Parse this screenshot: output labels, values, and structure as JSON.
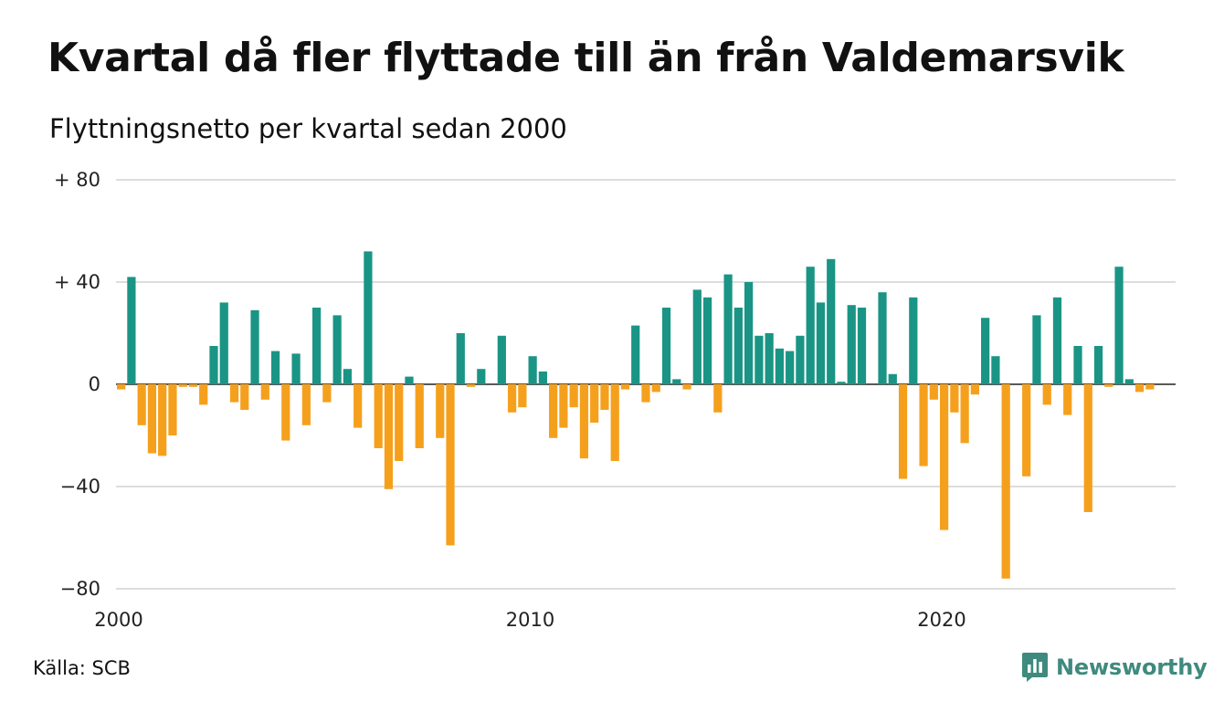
{
  "title": "Kvartal då fler flyttade till än från Valdemarsvik",
  "subtitle": "Flyttningsnetto per kvartal sedan 2000",
  "source": "Källa: SCB",
  "brand": {
    "name": "Newsworthy",
    "icon": "newsworthy-logo-icon",
    "color": "#3f8a7e"
  },
  "colors": {
    "positive": "#1a9585",
    "negative": "#f5a01d",
    "grid": "#dddddd",
    "zero_line": "#222222"
  },
  "chart_data": {
    "type": "bar",
    "title": "Kvartal då fler flyttade till än från Valdemarsvik",
    "subtitle": "Flyttningsnetto per kvartal sedan 2000",
    "xlabel": "",
    "ylabel": "",
    "ylim": [
      -80,
      80
    ],
    "yticks": [
      80,
      40,
      0,
      -40,
      -80
    ],
    "ytick_labels": [
      "+ 80",
      "+ 40",
      "0",
      "−40",
      "−80"
    ],
    "x_range": [
      2000,
      2025.75
    ],
    "xticks": [
      2000,
      2010,
      2020
    ],
    "xtick_labels": [
      "2000",
      "2010",
      "2020"
    ],
    "grid": true,
    "legend": "none",
    "start_quarter": "2000 Q1",
    "values": [
      -2,
      42,
      -16,
      -27,
      -28,
      -20,
      -1,
      -1,
      -8,
      15,
      32,
      -7,
      -10,
      29,
      -6,
      13,
      -22,
      12,
      -16,
      30,
      -7,
      27,
      6,
      -17,
      52,
      -25,
      -41,
      -30,
      3,
      -25,
      0,
      -21,
      -63,
      20,
      -1,
      6,
      0,
      19,
      -11,
      -9,
      11,
      5,
      -21,
      -17,
      -9,
      -29,
      -15,
      -10,
      -30,
      -2,
      23,
      -7,
      -3,
      30,
      2,
      -2,
      37,
      34,
      -11,
      43,
      30,
      40,
      19,
      20,
      14,
      13,
      19,
      46,
      32,
      49,
      1,
      31,
      30,
      0,
      36,
      4,
      -37,
      34,
      -32,
      -6,
      -57,
      -11,
      -23,
      -4,
      26,
      11,
      -76,
      0,
      -36,
      27,
      -8,
      34,
      -12,
      15,
      -50,
      15,
      -1,
      46,
      2,
      -3,
      -2
    ]
  }
}
